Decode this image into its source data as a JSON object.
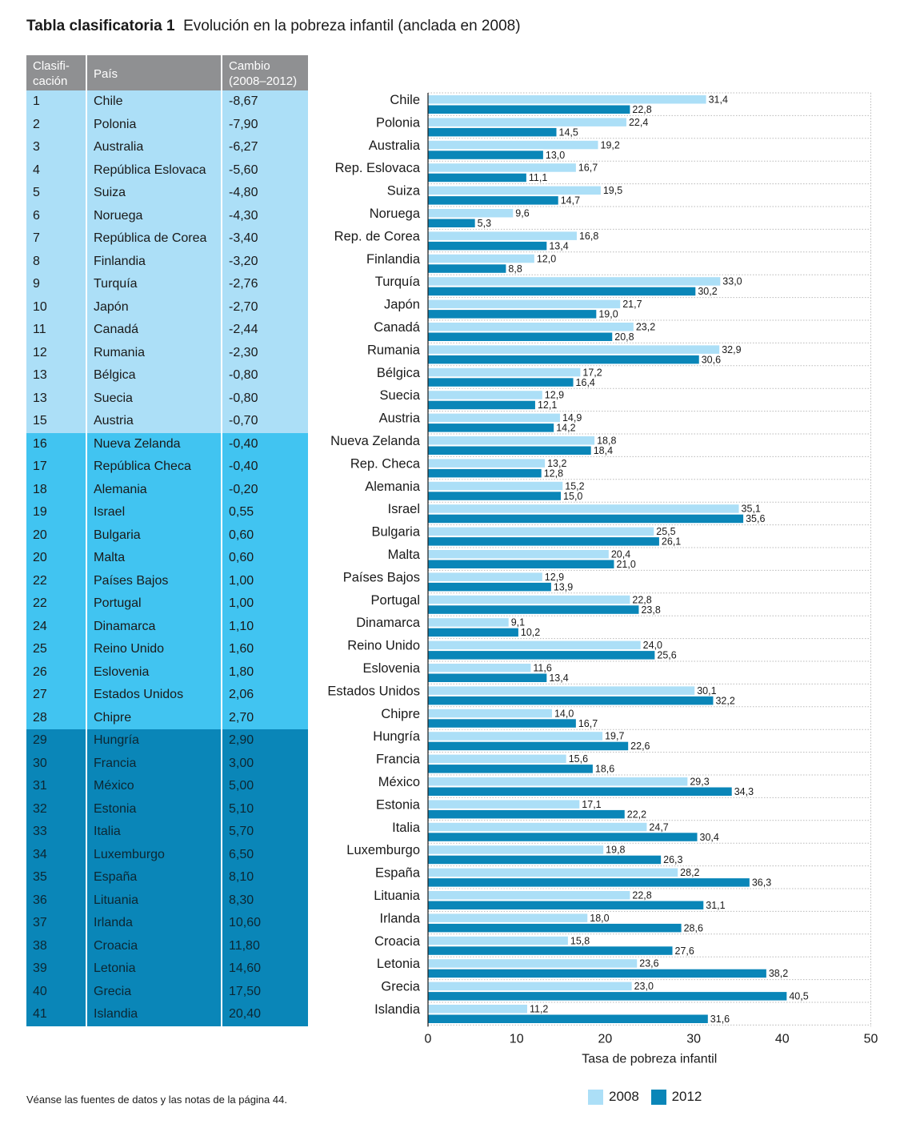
{
  "title": {
    "prefix": "Tabla clasificatoria 1",
    "text": "Evolución en la pobreza infantil (anclada en 2008)"
  },
  "table": {
    "headers": {
      "rank": "Clasifi-\ncación",
      "country": "País",
      "change": "Cambio\n(2008–2012)"
    },
    "group_colors": [
      "#acdff7",
      "#41c4f1",
      "#0a86b8"
    ],
    "rows": [
      {
        "rank": "1",
        "country": "Chile",
        "change": "-8,67",
        "group": 1
      },
      {
        "rank": "2",
        "country": "Polonia",
        "change": "-7,90",
        "group": 1
      },
      {
        "rank": "3",
        "country": "Australia",
        "change": "-6,27",
        "group": 1
      },
      {
        "rank": "4",
        "country": "República Eslovaca",
        "change": "-5,60",
        "group": 1
      },
      {
        "rank": "5",
        "country": "Suiza",
        "change": "-4,80",
        "group": 1
      },
      {
        "rank": "6",
        "country": "Noruega",
        "change": "-4,30",
        "group": 1
      },
      {
        "rank": "7",
        "country": "República de Corea",
        "change": "-3,40",
        "group": 1
      },
      {
        "rank": "8",
        "country": "Finlandia",
        "change": "-3,20",
        "group": 1
      },
      {
        "rank": "9",
        "country": "Turquía",
        "change": "-2,76",
        "group": 1
      },
      {
        "rank": "10",
        "country": "Japón",
        "change": "-2,70",
        "group": 1
      },
      {
        "rank": "11",
        "country": "Canadá",
        "change": "-2,44",
        "group": 1
      },
      {
        "rank": "12",
        "country": "Rumania",
        "change": "-2,30",
        "group": 1
      },
      {
        "rank": "13",
        "country": "Bélgica",
        "change": "-0,80",
        "group": 1
      },
      {
        "rank": "13",
        "country": "Suecia",
        "change": "-0,80",
        "group": 1
      },
      {
        "rank": "15",
        "country": "Austria",
        "change": "-0,70",
        "group": 1
      },
      {
        "rank": "16",
        "country": "Nueva Zelanda",
        "change": "-0,40",
        "group": 2
      },
      {
        "rank": "17",
        "country": "República Checa",
        "change": "-0,40",
        "group": 2
      },
      {
        "rank": "18",
        "country": "Alemania",
        "change": "-0,20",
        "group": 2
      },
      {
        "rank": "19",
        "country": "Israel",
        "change": "0,55",
        "group": 2
      },
      {
        "rank": "20",
        "country": "Bulgaria",
        "change": "0,60",
        "group": 2
      },
      {
        "rank": "20",
        "country": "Malta",
        "change": "0,60",
        "group": 2
      },
      {
        "rank": "22",
        "country": "Países Bajos",
        "change": "1,00",
        "group": 2
      },
      {
        "rank": "22",
        "country": "Portugal",
        "change": "1,00",
        "group": 2
      },
      {
        "rank": "24",
        "country": "Dinamarca",
        "change": "1,10",
        "group": 2
      },
      {
        "rank": "25",
        "country": "Reino Unido",
        "change": "1,60",
        "group": 2
      },
      {
        "rank": "26",
        "country": "Eslovenia",
        "change": "1,80",
        "group": 2
      },
      {
        "rank": "27",
        "country": "Estados Unidos",
        "change": "2,06",
        "group": 2
      },
      {
        "rank": "28",
        "country": "Chipre",
        "change": "2,70",
        "group": 2
      },
      {
        "rank": "29",
        "country": "Hungría",
        "change": "2,90",
        "group": 3
      },
      {
        "rank": "30",
        "country": "Francia",
        "change": "3,00",
        "group": 3
      },
      {
        "rank": "31",
        "country": "México",
        "change": "5,00",
        "group": 3
      },
      {
        "rank": "32",
        "country": "Estonia",
        "change": "5,10",
        "group": 3
      },
      {
        "rank": "33",
        "country": "Italia",
        "change": "5,70",
        "group": 3
      },
      {
        "rank": "34",
        "country": "Luxemburgo",
        "change": "6,50",
        "group": 3
      },
      {
        "rank": "35",
        "country": "España",
        "change": "8,10",
        "group": 3
      },
      {
        "rank": "36",
        "country": "Lituania",
        "change": "8,30",
        "group": 3
      },
      {
        "rank": "37",
        "country": "Irlanda",
        "change": "10,60",
        "group": 3
      },
      {
        "rank": "38",
        "country": "Croacia",
        "change": "11,80",
        "group": 3
      },
      {
        "rank": "39",
        "country": "Letonia",
        "change": "14,60",
        "group": 3
      },
      {
        "rank": "40",
        "country": "Grecia",
        "change": "17,50",
        "group": 3
      },
      {
        "rank": "41",
        "country": "Islandia",
        "change": "20,40",
        "group": 3
      }
    ]
  },
  "chart_data": {
    "type": "bar",
    "orientation": "horizontal",
    "categories": [
      "Chile",
      "Polonia",
      "Australia",
      "Rep. Eslovaca",
      "Suiza",
      "Noruega",
      "Rep. de Corea",
      "Finlandia",
      "Turquía",
      "Japón",
      "Canadá",
      "Rumania",
      "Bélgica",
      "Suecia",
      "Austria",
      "Nueva Zelanda",
      "Rep. Checa",
      "Alemania",
      "Israel",
      "Bulgaria",
      "Malta",
      "Países Bajos",
      "Portugal",
      "Dinamarca",
      "Reino Unido",
      "Eslovenia",
      "Estados Unidos",
      "Chipre",
      "Hungría",
      "Francia",
      "México",
      "Estonia",
      "Italia",
      "Luxemburgo",
      "España",
      "Lituania",
      "Irlanda",
      "Croacia",
      "Letonia",
      "Grecia",
      "Islandia"
    ],
    "series": [
      {
        "name": "2008",
        "color": "#acdff7",
        "values": [
          31.4,
          22.4,
          19.2,
          16.7,
          19.5,
          9.6,
          16.8,
          12.0,
          33.0,
          21.7,
          23.2,
          32.9,
          17.2,
          12.9,
          14.9,
          18.8,
          13.2,
          15.2,
          35.1,
          25.5,
          20.4,
          12.9,
          22.8,
          9.1,
          24.0,
          11.6,
          30.1,
          14.0,
          19.7,
          15.6,
          29.3,
          17.1,
          24.7,
          19.8,
          28.2,
          22.8,
          18.0,
          15.8,
          23.6,
          23.0,
          11.2
        ],
        "labels": [
          "31,4",
          "22,4",
          "19,2",
          "16,7",
          "19,5",
          "9,6",
          "16,8",
          "12,0",
          "33,0",
          "21,7",
          "23,2",
          "32,9",
          "17,2",
          "12,9",
          "14,9",
          "18,8",
          "13,2",
          "15,2",
          "35,1",
          "25,5",
          "20,4",
          "12,9",
          "22,8",
          "9,1",
          "24,0",
          "11,6",
          "30,1",
          "14,0",
          "19,7",
          "15,6",
          "29,3",
          "17,1",
          "24,7",
          "19,8",
          "28,2",
          "22,8",
          "18,0",
          "15,8",
          "23,6",
          "23,0",
          "11,2"
        ]
      },
      {
        "name": "2012",
        "color": "#0a86b8",
        "values": [
          22.8,
          14.5,
          13.0,
          11.1,
          14.7,
          5.3,
          13.4,
          8.8,
          30.2,
          19.0,
          20.8,
          30.6,
          16.4,
          12.1,
          14.2,
          18.4,
          12.8,
          15.0,
          35.6,
          26.1,
          21.0,
          13.9,
          23.8,
          10.2,
          25.6,
          13.4,
          32.2,
          16.7,
          22.6,
          18.6,
          34.3,
          22.2,
          30.4,
          26.3,
          36.3,
          31.1,
          28.6,
          27.6,
          38.2,
          40.5,
          31.6
        ],
        "labels": [
          "22,8",
          "14,5",
          "13,0",
          "11,1",
          "14,7",
          "5,3",
          "13,4",
          "8,8",
          "30,2",
          "19,0",
          "20,8",
          "30,6",
          "16,4",
          "12,1",
          "14,2",
          "18,4",
          "12,8",
          "15,0",
          "35,6",
          "26,1",
          "21,0",
          "13,9",
          "23,8",
          "10,2",
          "25,6",
          "13,4",
          "32,2",
          "16,7",
          "22,6",
          "18,6",
          "34,3",
          "22,2",
          "30,4",
          "26,3",
          "36,3",
          "31,1",
          "28,6",
          "27,6",
          "38,2",
          "40,5",
          "31,6"
        ]
      }
    ],
    "xlabel": "Tasa de pobreza infantil",
    "xlim": [
      0,
      50
    ],
    "xticks": [
      "0",
      "10",
      "20",
      "30",
      "40",
      "50"
    ],
    "grid": "dotted horizontal",
    "legend_position": "bottom"
  },
  "legend": {
    "items": [
      {
        "label": "2008",
        "color": "#acdff7"
      },
      {
        "label": "2012",
        "color": "#0a86b8"
      }
    ]
  },
  "footnote": "Véanse las fuentes de datos y las notas de la página 44."
}
